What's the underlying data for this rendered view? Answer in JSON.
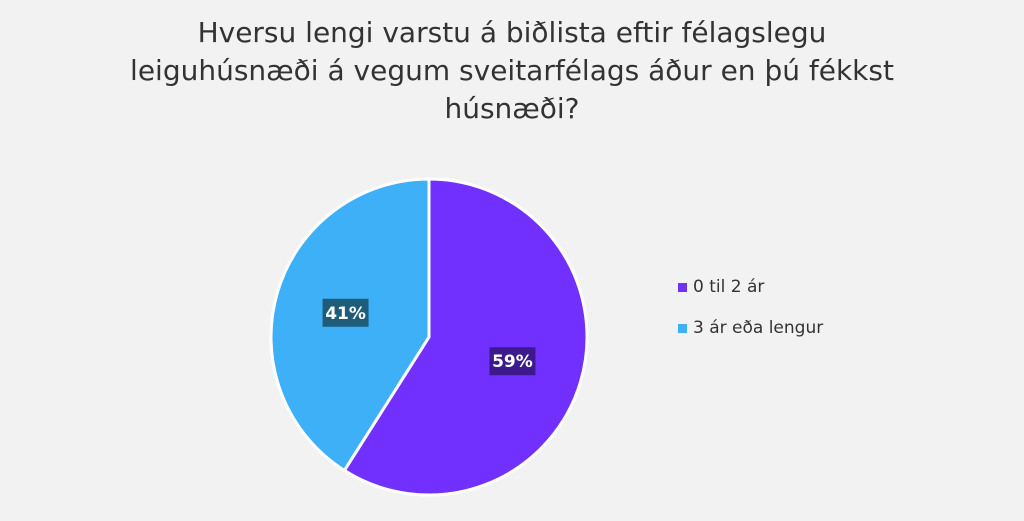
{
  "chart_data": {
    "type": "pie",
    "title_lines": [
      "Hversu lengi varstu á biðlista eftir félagslegu",
      "leiguhúsnæði á vegum sveitarfélags áður en þú fékkst",
      "húsnæði?"
    ],
    "slices": [
      {
        "label": "0 til 2 ár",
        "value": 59,
        "display": "59%",
        "color": "#7230ff",
        "label_bg": "#3d1a8c"
      },
      {
        "label": "3 ár eða lengur",
        "value": 41,
        "display": "41%",
        "color": "#3db0f7",
        "label_bg": "#1f5c7a"
      }
    ],
    "legend_position": "right"
  }
}
